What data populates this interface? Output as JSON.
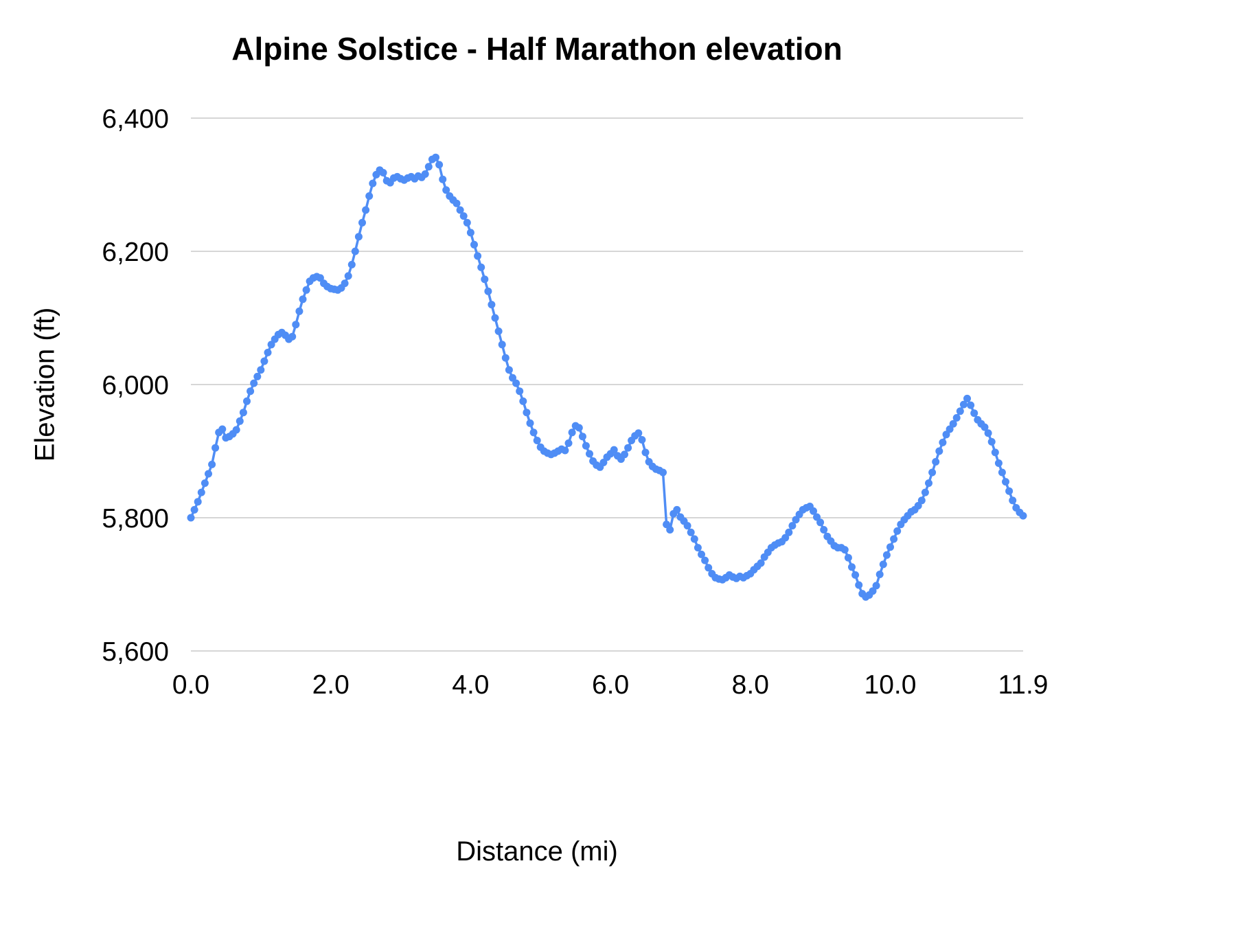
{
  "chart_data": {
    "type": "line",
    "title": "Alpine Solstice - Half Marathon elevation",
    "xlabel": "Distance (mi)",
    "ylabel": "Elevation (ft)",
    "xlim": [
      0,
      11.9
    ],
    "ylim": [
      5600,
      6400
    ],
    "x_start": 0,
    "x_step": 0.05,
    "grid": "horizontal",
    "legend": "none",
    "line_color": "#4f8df5",
    "grid_color": "#d6d6d6",
    "marker": "circle",
    "y_ticks": [
      {
        "value": 5600,
        "label": "5,600"
      },
      {
        "value": 5800,
        "label": "5,800"
      },
      {
        "value": 6000,
        "label": "6,000"
      },
      {
        "value": 6200,
        "label": "6,200"
      },
      {
        "value": 6400,
        "label": "6,400"
      }
    ],
    "x_ticks": [
      {
        "value": 0,
        "label": "0.0"
      },
      {
        "value": 2,
        "label": "2.0"
      },
      {
        "value": 4,
        "label": "4.0"
      },
      {
        "value": 6,
        "label": "6.0"
      },
      {
        "value": 8,
        "label": "8.0"
      },
      {
        "value": 10,
        "label": "10.0"
      },
      {
        "value": 11.9,
        "label": "11.9"
      }
    ],
    "values": [
      5800,
      5812,
      5824,
      5838,
      5852,
      5866,
      5880,
      5905,
      5928,
      5933,
      5920,
      5922,
      5926,
      5932,
      5945,
      5958,
      5975,
      5990,
      6002,
      6012,
      6022,
      6035,
      6048,
      6060,
      6068,
      6075,
      6078,
      6074,
      6068,
      6072,
      6090,
      6110,
      6128,
      6142,
      6155,
      6160,
      6162,
      6160,
      6152,
      6147,
      6144,
      6143,
      6142,
      6145,
      6152,
      6163,
      6180,
      6200,
      6222,
      6243,
      6262,
      6283,
      6302,
      6315,
      6322,
      6318,
      6306,
      6303,
      6310,
      6312,
      6309,
      6307,
      6310,
      6312,
      6309,
      6313,
      6311,
      6316,
      6327,
      6338,
      6341,
      6330,
      6308,
      6292,
      6283,
      6277,
      6272,
      6262,
      6253,
      6243,
      6228,
      6210,
      6193,
      6176,
      6158,
      6140,
      6120,
      6100,
      6080,
      6060,
      6040,
      6022,
      6010,
      6002,
      5990,
      5975,
      5958,
      5942,
      5928,
      5916,
      5906,
      5900,
      5897,
      5895,
      5897,
      5900,
      5903,
      5901,
      5912,
      5928,
      5938,
      5935,
      5922,
      5908,
      5896,
      5885,
      5879,
      5876,
      5883,
      5891,
      5896,
      5902,
      5893,
      5888,
      5895,
      5905,
      5916,
      5923,
      5927,
      5917,
      5898,
      5884,
      5877,
      5873,
      5871,
      5868,
      5790,
      5782,
      5806,
      5812,
      5801,
      5795,
      5788,
      5778,
      5768,
      5755,
      5745,
      5736,
      5725,
      5716,
      5710,
      5708,
      5707,
      5710,
      5714,
      5711,
      5709,
      5712,
      5710,
      5713,
      5716,
      5722,
      5727,
      5732,
      5741,
      5748,
      5755,
      5759,
      5762,
      5764,
      5770,
      5778,
      5788,
      5797,
      5805,
      5812,
      5815,
      5817,
      5810,
      5801,
      5793,
      5782,
      5772,
      5765,
      5758,
      5755,
      5755,
      5752,
      5740,
      5726,
      5714,
      5699,
      5686,
      5681,
      5684,
      5690,
      5698,
      5715,
      5730,
      5744,
      5756,
      5768,
      5780,
      5790,
      5797,
      5803,
      5809,
      5812,
      5818,
      5826,
      5838,
      5852,
      5868,
      5884,
      5900,
      5913,
      5925,
      5933,
      5941,
      5950,
      5960,
      5970,
      5979,
      5969,
      5957,
      5947,
      5941,
      5936,
      5927,
      5914,
      5898,
      5882,
      5868,
      5854,
      5840,
      5826,
      5815,
      5808,
      5803
    ]
  }
}
